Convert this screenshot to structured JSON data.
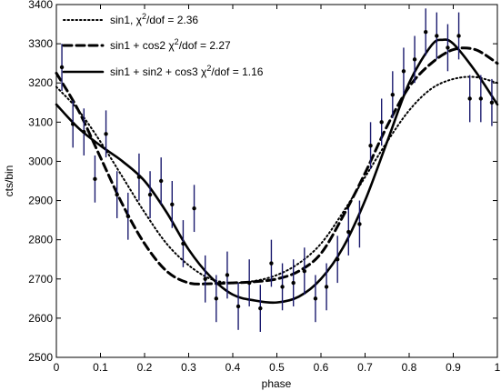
{
  "chart_data": {
    "type": "line",
    "title": "",
    "xlabel": "phase",
    "ylabel": "cts/bin",
    "xlim": [
      0,
      1
    ],
    "ylim": [
      2500,
      3400
    ],
    "xticks": [
      "0",
      "0.1",
      "0.2",
      "0.3",
      "0.4",
      "0.5",
      "0.6",
      "0.7",
      "0.8",
      "0.9",
      "1"
    ],
    "yticks": [
      "2500",
      "2600",
      "2700",
      "2800",
      "2900",
      "3000",
      "3100",
      "3200",
      "3300",
      "3400"
    ],
    "grid": false,
    "legend_position": "top-left",
    "legend": [
      {
        "id": "sin1",
        "text": "sin1, χ²/dof = 2.36",
        "prefix": "sin1, χ",
        "sup": "2",
        "suffix": "/dof = 2.36"
      },
      {
        "id": "sin1cos2",
        "text": "sin1 + cos2 χ²/dof = 2.27",
        "prefix": "sin1 + cos2 χ",
        "sup": "2",
        "suffix": "/dof = 2.27"
      },
      {
        "id": "sin1sin2cos3",
        "text": "sin1 + sin2 + cos3 χ²/dof = 1.16",
        "prefix": "sin1 + sin2 + cos3 χ",
        "sup": "2",
        "suffix": "/dof = 1.16"
      }
    ],
    "data_points": {
      "x": [
        0.0125,
        0.0375,
        0.0625,
        0.0875,
        0.1125,
        0.1375,
        0.1625,
        0.1875,
        0.2125,
        0.2375,
        0.2625,
        0.2875,
        0.3125,
        0.3375,
        0.3625,
        0.3875,
        0.4125,
        0.4375,
        0.4625,
        0.4875,
        0.5125,
        0.5375,
        0.5625,
        0.5875,
        0.6125,
        0.6375,
        0.6625,
        0.6875,
        0.7125,
        0.7375,
        0.7625,
        0.7875,
        0.8125,
        0.8375,
        0.8625,
        0.8875,
        0.9125,
        0.9375,
        0.9625,
        0.9875
      ],
      "y": [
        3240,
        3095,
        3075,
        2955,
        3070,
        2915,
        2860,
        2960,
        2915,
        2950,
        2890,
        2790,
        2880,
        2700,
        2650,
        2710,
        2630,
        2690,
        2625,
        2740,
        2680,
        2690,
        2720,
        2650,
        2680,
        2750,
        2820,
        2840,
        3040,
        3100,
        3170,
        3230,
        3260,
        3330,
        3320,
        3290,
        3320,
        3160,
        3160,
        3150
      ],
      "err": [
        60,
        60,
        60,
        60,
        60,
        60,
        60,
        60,
        60,
        60,
        60,
        60,
        60,
        60,
        60,
        60,
        60,
        60,
        60,
        60,
        60,
        60,
        60,
        60,
        60,
        60,
        60,
        60,
        60,
        60,
        60,
        60,
        60,
        60,
        60,
        60,
        60,
        60,
        60,
        60
      ]
    },
    "series": [
      {
        "id": "sin1",
        "style": "dotted",
        "x": [
          0,
          0.05,
          0.1,
          0.15,
          0.2,
          0.25,
          0.3,
          0.35,
          0.4,
          0.45,
          0.5,
          0.55,
          0.6,
          0.65,
          0.7,
          0.75,
          0.8,
          0.85,
          0.9,
          0.95,
          1.0
        ],
        "y": [
          3190,
          3130,
          3050,
          2960,
          2870,
          2790,
          2735,
          2700,
          2690,
          2695,
          2710,
          2740,
          2790,
          2870,
          2960,
          3050,
          3130,
          3185,
          3210,
          3215,
          3200
        ]
      },
      {
        "id": "sin1cos2",
        "style": "dashed",
        "x": [
          0,
          0.05,
          0.1,
          0.15,
          0.2,
          0.25,
          0.3,
          0.35,
          0.4,
          0.45,
          0.5,
          0.55,
          0.6,
          0.65,
          0.7,
          0.75,
          0.8,
          0.85,
          0.9,
          0.95,
          1.0
        ],
        "y": [
          3225,
          3130,
          3010,
          2890,
          2790,
          2720,
          2690,
          2688,
          2690,
          2693,
          2700,
          2720,
          2765,
          2860,
          2970,
          3090,
          3190,
          3250,
          3285,
          3285,
          3250
        ]
      },
      {
        "id": "sin1sin2cos3",
        "style": "solid",
        "x": [
          0,
          0.05,
          0.1,
          0.15,
          0.2,
          0.25,
          0.3,
          0.35,
          0.4,
          0.45,
          0.5,
          0.55,
          0.6,
          0.65,
          0.7,
          0.75,
          0.8,
          0.85,
          0.875,
          0.9,
          0.95,
          1.0
        ],
        "y": [
          3145,
          3085,
          3040,
          3000,
          2950,
          2870,
          2775,
          2705,
          2660,
          2645,
          2640,
          2655,
          2700,
          2780,
          2900,
          3050,
          3200,
          3295,
          3310,
          3300,
          3230,
          3145
        ]
      }
    ]
  }
}
